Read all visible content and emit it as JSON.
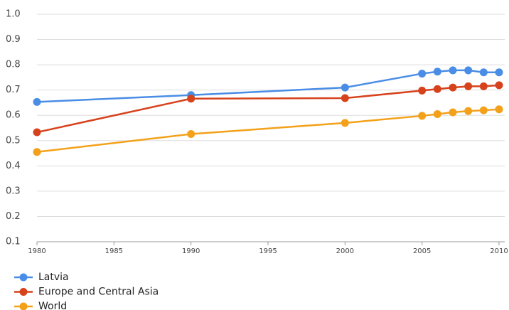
{
  "chart_data": {
    "type": "line",
    "x": [
      1980,
      1990,
      2000,
      2005,
      2006,
      2007,
      2008,
      2009,
      2010
    ],
    "series": [
      {
        "name": "Latvia",
        "color": "#4a8de6",
        "values": [
          0.653,
          0.68,
          0.71,
          0.765,
          0.773,
          0.778,
          0.778,
          0.77,
          0.77
        ]
      },
      {
        "name": "Europe and Central Asia",
        "color": "#d6421c",
        "values": [
          0.533,
          0.666,
          0.668,
          0.698,
          0.704,
          0.71,
          0.715,
          0.715,
          0.719
        ]
      },
      {
        "name": "World",
        "color": "#f3a11a",
        "values": [
          0.455,
          0.526,
          0.57,
          0.598,
          0.605,
          0.612,
          0.617,
          0.62,
          0.624
        ]
      }
    ],
    "xlim": [
      1980,
      2010
    ],
    "xticks": [
      1980,
      1985,
      1990,
      1995,
      2000,
      2005,
      2010
    ],
    "ylim": [
      0.1,
      1.0
    ],
    "yticks": [
      0.1,
      0.2,
      0.3,
      0.4,
      0.5,
      0.6,
      0.7,
      0.8,
      0.9,
      {
        "value": 1.0,
        "label": "1.0"
      }
    ],
    "grid": true,
    "legend": "bottom"
  }
}
